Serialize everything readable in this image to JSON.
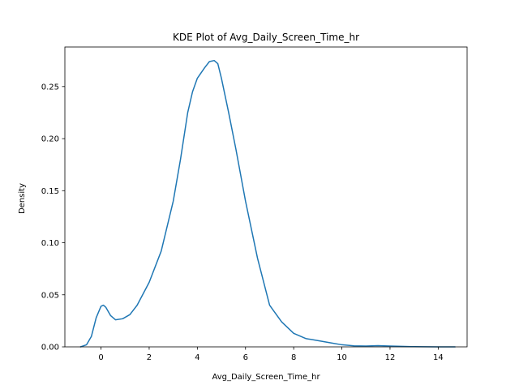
{
  "chart_data": {
    "type": "line",
    "title": "KDE Plot of Avg_Daily_Screen_Time_hr",
    "xlabel": "Avg_Daily_Screen_Time_hr",
    "ylabel": "Density",
    "xlim": [
      -1.5,
      15.2
    ],
    "ylim": [
      0,
      0.288
    ],
    "xticks": [
      "0",
      "2",
      "4",
      "6",
      "8",
      "10",
      "12",
      "14"
    ],
    "yticks": [
      "0.00",
      "0.05",
      "0.10",
      "0.15",
      "0.20",
      "0.25"
    ],
    "grid": false,
    "line_color": "#1f77b4",
    "series": [
      {
        "x": [
          -0.85,
          -0.6,
          -0.4,
          -0.2,
          0.0,
          0.1,
          0.2,
          0.4,
          0.6,
          0.9,
          1.2,
          1.5,
          2.0,
          2.5,
          3.0,
          3.3,
          3.6,
          3.8,
          4.0,
          4.3,
          4.5,
          4.7,
          4.85,
          5.0,
          5.3,
          5.6,
          6.0,
          6.5,
          7.0,
          7.5,
          8.0,
          8.5,
          9.0,
          9.5,
          10.0,
          10.5,
          11.0,
          11.5,
          12.0,
          13.0,
          14.0,
          14.7
        ],
        "y": [
          0.0,
          0.002,
          0.01,
          0.028,
          0.039,
          0.04,
          0.038,
          0.03,
          0.026,
          0.027,
          0.031,
          0.04,
          0.062,
          0.092,
          0.14,
          0.18,
          0.225,
          0.245,
          0.258,
          0.268,
          0.274,
          0.275,
          0.272,
          0.258,
          0.225,
          0.19,
          0.14,
          0.085,
          0.04,
          0.024,
          0.013,
          0.008,
          0.006,
          0.004,
          0.002,
          0.001,
          0.0008,
          0.0012,
          0.0008,
          0.0002,
          0.0,
          0.0
        ]
      }
    ]
  }
}
